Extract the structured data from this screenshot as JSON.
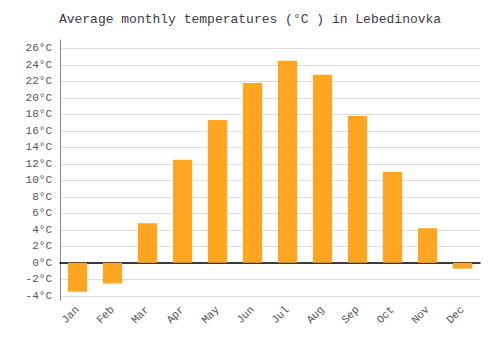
{
  "chart_data": {
    "type": "bar",
    "title": "Average monthly temperatures (°C ) in Lebedinovka",
    "categories": [
      "Jan",
      "Feb",
      "Mar",
      "Apr",
      "May",
      "Jun",
      "Jul",
      "Aug",
      "Sep",
      "Oct",
      "Nov",
      "Dec"
    ],
    "values": [
      -3.5,
      -2.5,
      4.8,
      12.5,
      17.3,
      21.8,
      24.5,
      22.8,
      17.8,
      11.0,
      4.2,
      -0.7
    ],
    "color": "#FFA520",
    "ylim": [
      -4.5,
      27
    ],
    "yticks": [
      {
        "value": -4,
        "label": "-4°C"
      },
      {
        "value": -2,
        "label": "-2°C"
      },
      {
        "value": 0,
        "label": "0°C"
      },
      {
        "value": 2,
        "label": "2°C"
      },
      {
        "value": 4,
        "label": "4°C"
      },
      {
        "value": 6,
        "label": "6°C"
      },
      {
        "value": 8,
        "label": "8°C"
      },
      {
        "value": 10,
        "label": "10°C"
      },
      {
        "value": 12,
        "label": "12°C"
      },
      {
        "value": 14,
        "label": "14°C"
      },
      {
        "value": 16,
        "label": "16°C"
      },
      {
        "value": 18,
        "label": "18°C"
      },
      {
        "value": 20,
        "label": "20°C"
      },
      {
        "value": 22,
        "label": "22°C"
      },
      {
        "value": 24,
        "label": "24°C"
      },
      {
        "value": 26,
        "label": "26°C"
      }
    ],
    "grid": true
  }
}
